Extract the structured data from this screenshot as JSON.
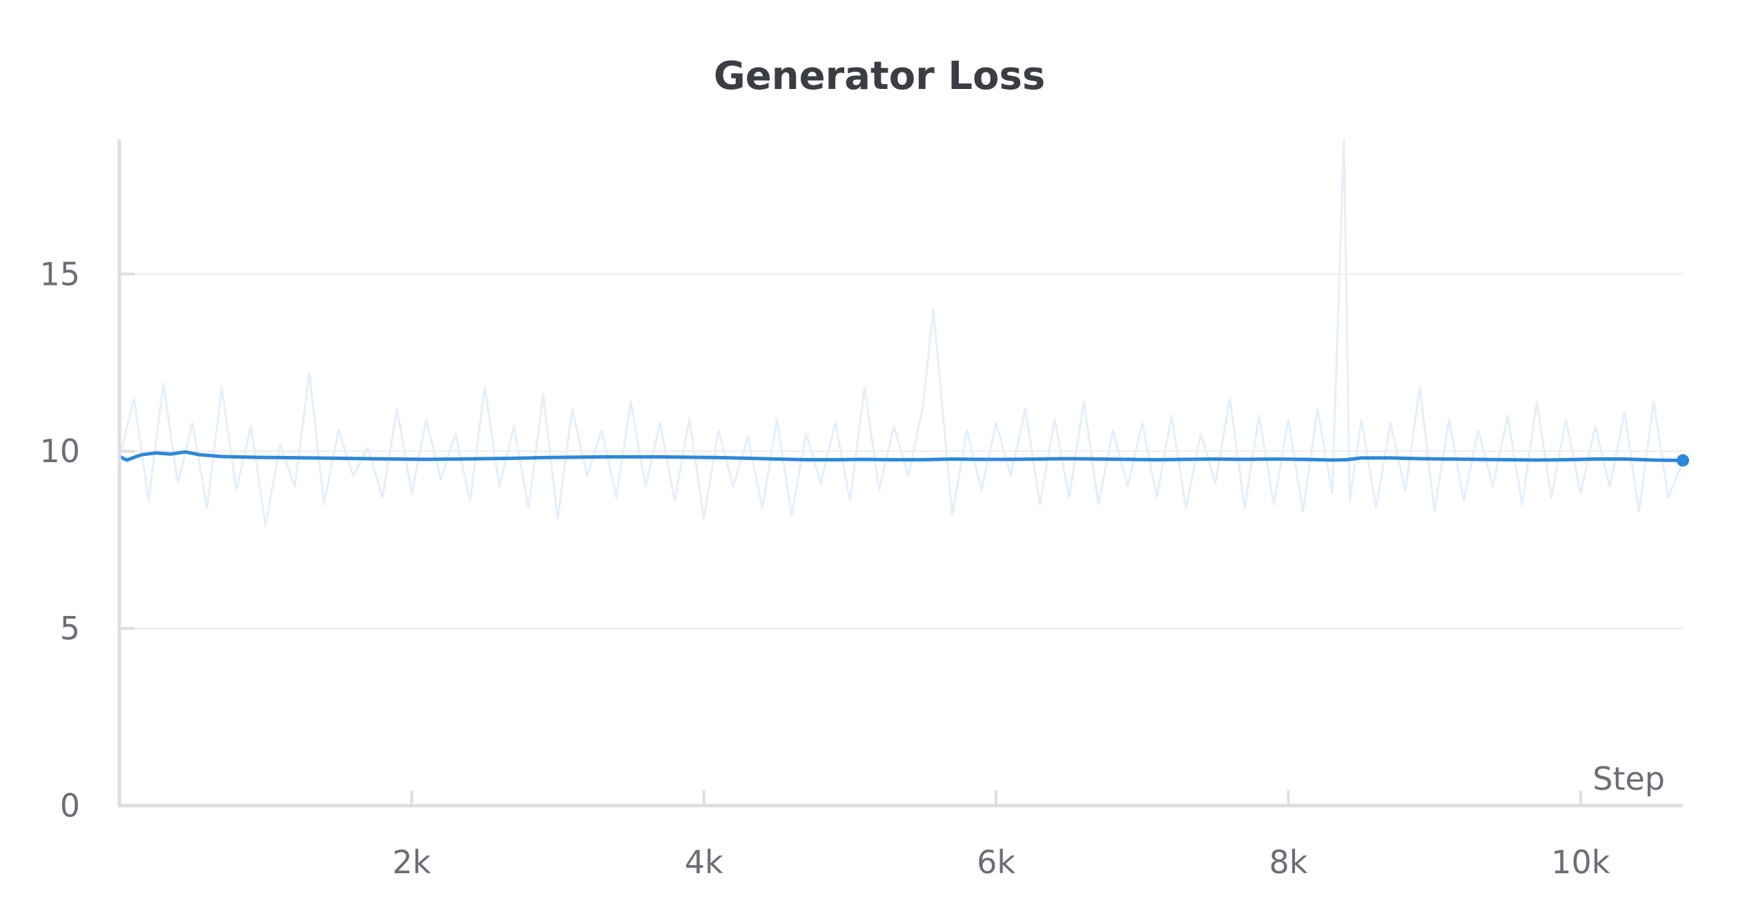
{
  "chart_data": {
    "type": "line",
    "title": "Generator Loss",
    "xlabel": "Step",
    "ylabel": "",
    "xlim": [
      0,
      10700
    ],
    "ylim": [
      0,
      18.8
    ],
    "x_ticks": [
      {
        "value": 2000,
        "label": "2k"
      },
      {
        "value": 4000,
        "label": "4k"
      },
      {
        "value": 6000,
        "label": "6k"
      },
      {
        "value": 8000,
        "label": "8k"
      },
      {
        "value": 10000,
        "label": "10k"
      }
    ],
    "y_ticks": [
      {
        "value": 0,
        "label": "0"
      },
      {
        "value": 5,
        "label": "5"
      },
      {
        "value": 10,
        "label": "10"
      },
      {
        "value": 15,
        "label": "15"
      }
    ],
    "grid": true,
    "legend": "none",
    "colors": {
      "smoothed": "#2d88d9",
      "raw": "#e3effb",
      "grid": "#ebebed",
      "axis": "#dedee2",
      "text": "#6b6e77",
      "title": "#3b3d45"
    },
    "series": [
      {
        "role": "raw",
        "x": [
          0,
          100,
          200,
          300,
          400,
          500,
          600,
          700,
          800,
          900,
          1000,
          1100,
          1200,
          1300,
          1400,
          1500,
          1600,
          1700,
          1800,
          1900,
          2000,
          2100,
          2200,
          2300,
          2400,
          2500,
          2600,
          2700,
          2800,
          2900,
          3000,
          3100,
          3200,
          3300,
          3400,
          3500,
          3600,
          3700,
          3800,
          3900,
          4000,
          4100,
          4200,
          4300,
          4400,
          4500,
          4600,
          4700,
          4800,
          4900,
          5000,
          5100,
          5200,
          5300,
          5400,
          5500,
          5570,
          5700,
          5800,
          5900,
          6000,
          6100,
          6200,
          6300,
          6400,
          6500,
          6600,
          6700,
          6800,
          6900,
          7000,
          7100,
          7200,
          7300,
          7400,
          7500,
          7600,
          7700,
          7800,
          7900,
          8000,
          8100,
          8200,
          8300,
          8380,
          8420,
          8500,
          8600,
          8700,
          8800,
          8900,
          9000,
          9100,
          9200,
          9300,
          9400,
          9500,
          9600,
          9700,
          9800,
          9900,
          10000,
          10100,
          10200,
          10300,
          10400,
          10500,
          10600,
          10700
        ],
        "y": [
          9.8,
          11.5,
          8.6,
          11.9,
          9.1,
          10.8,
          8.4,
          11.8,
          8.9,
          10.7,
          7.9,
          10.2,
          9.0,
          12.2,
          8.5,
          10.6,
          9.3,
          10.1,
          8.7,
          11.2,
          8.8,
          10.9,
          9.2,
          10.5,
          8.6,
          11.8,
          9.0,
          10.7,
          8.4,
          11.6,
          8.1,
          11.2,
          9.3,
          10.6,
          8.7,
          11.4,
          9.0,
          10.8,
          8.6,
          10.9,
          8.1,
          10.6,
          9.0,
          10.4,
          8.4,
          10.9,
          8.2,
          10.5,
          9.1,
          10.8,
          8.6,
          11.8,
          8.9,
          10.7,
          9.3,
          11.3,
          14.0,
          8.2,
          10.6,
          8.9,
          10.8,
          9.3,
          11.2,
          8.5,
          10.9,
          8.7,
          11.4,
          8.5,
          10.6,
          9.0,
          10.8,
          8.7,
          11.0,
          8.4,
          10.5,
          9.1,
          11.5,
          8.4,
          11.0,
          8.5,
          10.9,
          8.3,
          11.2,
          8.8,
          18.8,
          8.6,
          10.9,
          8.4,
          10.8,
          8.9,
          11.8,
          8.3,
          10.9,
          8.6,
          10.6,
          9.0,
          11.0,
          8.5,
          11.4,
          8.7,
          10.9,
          8.8,
          10.7,
          9.0,
          11.1,
          8.3,
          11.4,
          8.7,
          9.7
        ]
      },
      {
        "role": "smoothed",
        "x": [
          0,
          50,
          150,
          250,
          350,
          450,
          550,
          700,
          900,
          1100,
          1300,
          1500,
          1700,
          1900,
          2100,
          2300,
          2500,
          2700,
          2900,
          3100,
          3300,
          3500,
          3700,
          3900,
          4100,
          4300,
          4500,
          4700,
          4900,
          5100,
          5300,
          5500,
          5700,
          5900,
          6100,
          6300,
          6500,
          6700,
          6900,
          7100,
          7300,
          7500,
          7700,
          7900,
          8100,
          8300,
          8400,
          8500,
          8700,
          8900,
          9100,
          9300,
          9500,
          9700,
          9900,
          10100,
          10300,
          10500,
          10700
        ],
        "y": [
          9.85,
          9.75,
          9.9,
          9.95,
          9.92,
          9.98,
          9.9,
          9.85,
          9.83,
          9.82,
          9.81,
          9.8,
          9.79,
          9.78,
          9.77,
          9.78,
          9.79,
          9.8,
          9.82,
          9.83,
          9.84,
          9.84,
          9.84,
          9.83,
          9.82,
          9.8,
          9.78,
          9.76,
          9.76,
          9.77,
          9.76,
          9.76,
          9.78,
          9.77,
          9.77,
          9.78,
          9.79,
          9.78,
          9.77,
          9.76,
          9.77,
          9.78,
          9.77,
          9.78,
          9.77,
          9.75,
          9.76,
          9.81,
          9.81,
          9.79,
          9.78,
          9.77,
          9.76,
          9.75,
          9.76,
          9.78,
          9.78,
          9.75,
          9.74
        ]
      }
    ]
  }
}
